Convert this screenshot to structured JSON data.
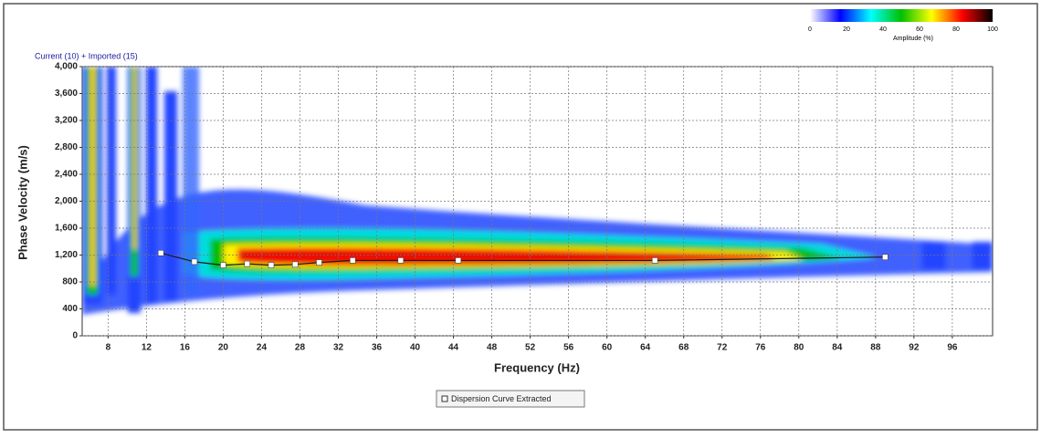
{
  "chart_data": {
    "type": "line",
    "subtitle": "Current (10) + Imported (15)",
    "x_label": "Frequency (Hz)",
    "y_label": "Phase Velocity (m/s)",
    "xlim": [
      5.3,
      100.2
    ],
    "xticks": [
      8,
      12,
      16,
      20,
      24,
      28,
      32,
      36,
      40,
      44,
      48,
      52,
      56,
      60,
      64,
      68,
      72,
      76,
      80,
      84,
      88,
      92,
      96
    ],
    "ylim": [
      0,
      4000
    ],
    "yticks": [
      0,
      400,
      800,
      {
        "value": 1200,
        "label": "1,200"
      },
      {
        "value": 1600,
        "label": "1,600"
      },
      {
        "value": 2000,
        "label": "2,000"
      },
      {
        "value": 2400,
        "label": "2,400"
      },
      {
        "value": 2800,
        "label": "2,800"
      },
      {
        "value": 3200,
        "label": "3,200"
      },
      {
        "value": 3600,
        "label": "3,600"
      },
      {
        "value": 4000,
        "label": "4,000"
      }
    ],
    "grid": true,
    "series": [
      {
        "name": "Dispersion Curve Extracted",
        "color": "#1a1a1a",
        "marker_color": "#ffffff",
        "x": [
          13.5,
          17,
          20,
          22.5,
          25,
          27.5,
          30,
          33.5,
          38.5,
          44.5,
          65,
          89
        ],
        "values": [
          1230,
          1100,
          1050,
          1070,
          1050,
          1060,
          1090,
          1120,
          1120,
          1120,
          1120,
          1170
        ]
      }
    ],
    "colorbar": {
      "label": "Amplitude (%)",
      "ticks": [
        0,
        20,
        40,
        60,
        80,
        100
      ],
      "lim": [
        0,
        100
      ],
      "colors": [
        "#ffffff",
        "#0000ff",
        "#00ffff",
        "#00c000",
        "#ffff00",
        "#ff0000",
        "#000000"
      ]
    }
  }
}
